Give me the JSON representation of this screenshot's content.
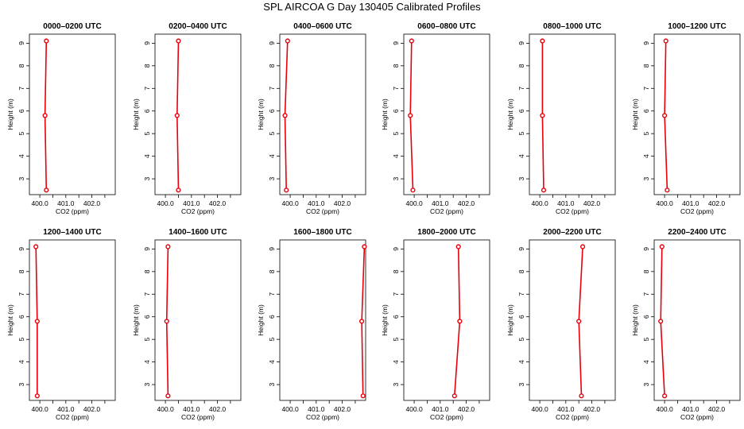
{
  "title": "SPL AIRCOA G  Day 130405  Calibrated Profiles",
  "chart_data": [
    {
      "type": "line",
      "title": "0000–0200 UTC",
      "xlabel": "CO2 (ppm)",
      "ylabel": "Height (m)",
      "xlim": [
        399.6,
        402.9
      ],
      "ylim": [
        2.3,
        9.4
      ],
      "xticks": [
        "400.0",
        "401.0",
        "402.0"
      ],
      "xtick_values": [
        400,
        401,
        402
      ],
      "yticks": [
        3,
        4,
        5,
        6,
        7,
        8,
        9
      ],
      "x": [
        400.25,
        400.2,
        400.25
      ],
      "y": [
        2.5,
        5.8,
        9.1
      ]
    },
    {
      "type": "line",
      "title": "0200–0400 UTC",
      "xlabel": "CO2 (ppm)",
      "ylabel": "Height (m)",
      "xlim": [
        399.6,
        402.9
      ],
      "ylim": [
        2.3,
        9.4
      ],
      "xticks": [
        "400.0",
        "401.0",
        "402.0"
      ],
      "xtick_values": [
        400,
        401,
        402
      ],
      "yticks": [
        3,
        4,
        5,
        6,
        7,
        8,
        9
      ],
      "x": [
        400.5,
        400.45,
        400.5
      ],
      "y": [
        2.5,
        5.8,
        9.1
      ]
    },
    {
      "type": "line",
      "title": "0400–0600 UTC",
      "xlabel": "CO2 (ppm)",
      "ylabel": "Height (m)",
      "xlim": [
        399.6,
        402.9
      ],
      "ylim": [
        2.3,
        9.4
      ],
      "xticks": [
        "400.0",
        "401.0",
        "402.0"
      ],
      "xtick_values": [
        400,
        401,
        402
      ],
      "yticks": [
        3,
        4,
        5,
        6,
        7,
        8,
        9
      ],
      "x": [
        399.85,
        399.8,
        399.9
      ],
      "y": [
        2.5,
        5.8,
        9.1
      ]
    },
    {
      "type": "line",
      "title": "0600–0800 UTC",
      "xlabel": "CO2 (ppm)",
      "ylabel": "Height (m)",
      "xlim": [
        399.6,
        402.9
      ],
      "ylim": [
        2.3,
        9.4
      ],
      "xticks": [
        "400.0",
        "401.0",
        "402.0"
      ],
      "xtick_values": [
        400,
        401,
        402
      ],
      "yticks": [
        3,
        4,
        5,
        6,
        7,
        8,
        9
      ],
      "x": [
        399.95,
        399.85,
        399.9
      ],
      "y": [
        2.5,
        5.8,
        9.1
      ]
    },
    {
      "type": "line",
      "title": "0800–1000 UTC",
      "xlabel": "CO2 (ppm)",
      "ylabel": "Height (m)",
      "xlim": [
        399.6,
        402.9
      ],
      "ylim": [
        2.3,
        9.4
      ],
      "xticks": [
        "400.0",
        "401.0",
        "402.0"
      ],
      "xtick_values": [
        400,
        401,
        402
      ],
      "yticks": [
        3,
        4,
        5,
        6,
        7,
        8,
        9
      ],
      "x": [
        400.15,
        400.1,
        400.1
      ],
      "y": [
        2.5,
        5.8,
        9.1
      ]
    },
    {
      "type": "line",
      "title": "1000–1200 UTC",
      "xlabel": "CO2 (ppm)",
      "ylabel": "Height (m)",
      "xlim": [
        399.6,
        402.9
      ],
      "ylim": [
        2.3,
        9.4
      ],
      "xticks": [
        "400.0",
        "401.0",
        "402.0"
      ],
      "xtick_values": [
        400,
        401,
        402
      ],
      "yticks": [
        3,
        4,
        5,
        6,
        7,
        8,
        9
      ],
      "x": [
        400.1,
        400.0,
        400.05
      ],
      "y": [
        2.5,
        5.8,
        9.1
      ]
    },
    {
      "type": "line",
      "title": "1200–1400 UTC",
      "xlabel": "CO2 (ppm)",
      "ylabel": "Height (m)",
      "xlim": [
        399.6,
        402.9
      ],
      "ylim": [
        2.3,
        9.4
      ],
      "xticks": [
        "400.0",
        "401.0",
        "402.0"
      ],
      "xtick_values": [
        400,
        401,
        402
      ],
      "yticks": [
        3,
        4,
        5,
        6,
        7,
        8,
        9
      ],
      "x": [
        399.9,
        399.9,
        399.85
      ],
      "y": [
        2.5,
        5.8,
        9.1
      ]
    },
    {
      "type": "line",
      "title": "1400–1600 UTC",
      "xlabel": "CO2 (ppm)",
      "ylabel": "Height (m)",
      "xlim": [
        399.6,
        402.9
      ],
      "ylim": [
        2.3,
        9.4
      ],
      "xticks": [
        "400.0",
        "401.0",
        "402.0"
      ],
      "xtick_values": [
        400,
        401,
        402
      ],
      "yticks": [
        3,
        4,
        5,
        6,
        7,
        8,
        9
      ],
      "x": [
        400.1,
        400.05,
        400.1
      ],
      "y": [
        2.5,
        5.8,
        9.1
      ]
    },
    {
      "type": "line",
      "title": "1600–1800 UTC",
      "xlabel": "CO2 (ppm)",
      "ylabel": "Height (m)",
      "xlim": [
        399.6,
        402.9
      ],
      "ylim": [
        2.3,
        9.4
      ],
      "xticks": [
        "400.0",
        "401.0",
        "402.0"
      ],
      "xtick_values": [
        400,
        401,
        402
      ],
      "yticks": [
        3,
        4,
        5,
        6,
        7,
        8,
        9
      ],
      "x": [
        402.8,
        402.75,
        402.85
      ],
      "y": [
        2.5,
        5.8,
        9.1
      ]
    },
    {
      "type": "line",
      "title": "1800–2000 UTC",
      "xlabel": "CO2 (ppm)",
      "ylabel": "Height (m)",
      "xlim": [
        399.6,
        402.9
      ],
      "ylim": [
        2.3,
        9.4
      ],
      "xticks": [
        "400.0",
        "401.0",
        "402.0"
      ],
      "xtick_values": [
        400,
        401,
        402
      ],
      "yticks": [
        3,
        4,
        5,
        6,
        7,
        8,
        9
      ],
      "x": [
        401.55,
        401.75,
        401.7
      ],
      "y": [
        2.5,
        5.8,
        9.1
      ]
    },
    {
      "type": "line",
      "title": "2000–2200 UTC",
      "xlabel": "CO2 (ppm)",
      "ylabel": "Height (m)",
      "xlim": [
        399.6,
        402.9
      ],
      "ylim": [
        2.3,
        9.4
      ],
      "xticks": [
        "400.0",
        "401.0",
        "402.0"
      ],
      "xtick_values": [
        400,
        401,
        402
      ],
      "yticks": [
        3,
        4,
        5,
        6,
        7,
        8,
        9
      ],
      "x": [
        401.6,
        401.5,
        401.65
      ],
      "y": [
        2.5,
        5.8,
        9.1
      ]
    },
    {
      "type": "line",
      "title": "2200–2400 UTC",
      "xlabel": "CO2 (ppm)",
      "ylabel": "Height (m)",
      "xlim": [
        399.6,
        402.9
      ],
      "ylim": [
        2.3,
        9.4
      ],
      "xticks": [
        "400.0",
        "401.0",
        "402.0"
      ],
      "xtick_values": [
        400,
        401,
        402
      ],
      "yticks": [
        3,
        4,
        5,
        6,
        7,
        8,
        9
      ],
      "x": [
        400.0,
        399.85,
        399.9
      ],
      "y": [
        2.5,
        5.8,
        9.1
      ]
    }
  ],
  "colors": {
    "series": "#e8000b",
    "axis": "#000000"
  }
}
